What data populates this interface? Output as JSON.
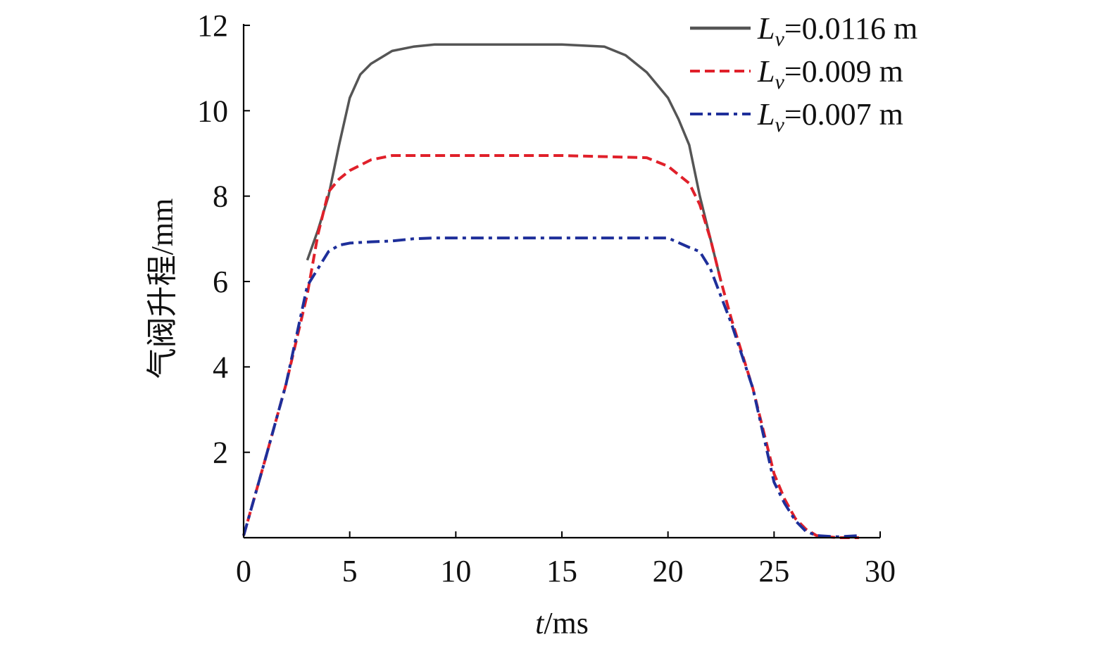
{
  "chart_data": {
    "type": "line",
    "xlabel": {
      "italic": "t",
      "rest": "/ms"
    },
    "ylabel": "气阀升程/mm",
    "xlim": [
      0,
      30
    ],
    "ylim": [
      0,
      12
    ],
    "xticks": [
      0,
      5,
      10,
      15,
      20,
      25,
      30
    ],
    "yticks": [
      2,
      4,
      6,
      8,
      10,
      12
    ],
    "grid": false,
    "legend": {
      "placement": "top-right"
    },
    "series": [
      {
        "name": "L_v=0.0116 m",
        "label_italic": "L",
        "label_sub": "v",
        "label_rest": "=0.0116 m",
        "color": "#555555",
        "style": "solid",
        "points": [
          [
            3.0,
            6.5
          ],
          [
            3.5,
            7.2
          ],
          [
            4.0,
            8.0
          ],
          [
            4.5,
            9.2
          ],
          [
            5.0,
            10.3
          ],
          [
            5.5,
            10.85
          ],
          [
            6.0,
            11.1
          ],
          [
            7.0,
            11.4
          ],
          [
            8.0,
            11.5
          ],
          [
            9.0,
            11.55
          ],
          [
            10.0,
            11.55
          ],
          [
            15.0,
            11.55
          ],
          [
            17.0,
            11.5
          ],
          [
            18.0,
            11.3
          ],
          [
            19.0,
            10.9
          ],
          [
            20.0,
            10.3
          ],
          [
            20.5,
            9.8
          ],
          [
            21.0,
            9.2
          ],
          [
            21.5,
            8.0
          ],
          [
            22.0,
            7.0
          ],
          [
            22.5,
            6.0
          ]
        ]
      },
      {
        "name": "L_v=0.009 m",
        "label_italic": "L",
        "label_sub": "v",
        "label_rest": "=0.009 m",
        "color": "#e0202a",
        "style": "dashed",
        "points": [
          [
            0.0,
            0.05
          ],
          [
            1.0,
            1.8
          ],
          [
            2.0,
            3.6
          ],
          [
            3.0,
            5.7
          ],
          [
            3.5,
            7.1
          ],
          [
            4.0,
            8.1
          ],
          [
            4.5,
            8.4
          ],
          [
            5.0,
            8.6
          ],
          [
            6.0,
            8.85
          ],
          [
            7.0,
            8.95
          ],
          [
            10.0,
            8.95
          ],
          [
            15.0,
            8.95
          ],
          [
            19.0,
            8.9
          ],
          [
            20.0,
            8.7
          ],
          [
            21.0,
            8.3
          ],
          [
            21.5,
            7.8
          ],
          [
            22.0,
            7.0
          ],
          [
            22.5,
            6.0
          ],
          [
            23.0,
            5.1
          ],
          [
            24.0,
            3.5
          ],
          [
            25.0,
            1.5
          ],
          [
            25.5,
            0.9
          ],
          [
            26.0,
            0.45
          ],
          [
            26.5,
            0.2
          ],
          [
            27.0,
            0.05
          ],
          [
            28.0,
            0.0
          ],
          [
            29.0,
            0.0
          ]
        ]
      },
      {
        "name": "L_v=0.007 m",
        "label_italic": "L",
        "label_sub": "v",
        "label_rest": "=0.007 m",
        "color": "#1e2f9a",
        "style": "dashdot",
        "points": [
          [
            0.0,
            0.05
          ],
          [
            1.0,
            1.8
          ],
          [
            2.0,
            3.6
          ],
          [
            3.0,
            5.9
          ],
          [
            3.5,
            6.3
          ],
          [
            4.0,
            6.7
          ],
          [
            4.5,
            6.85
          ],
          [
            5.0,
            6.9
          ],
          [
            6.0,
            6.93
          ],
          [
            7.0,
            6.95
          ],
          [
            8.0,
            7.0
          ],
          [
            9.0,
            7.02
          ],
          [
            10.0,
            7.02
          ],
          [
            15.0,
            7.02
          ],
          [
            20.0,
            7.02
          ],
          [
            21.0,
            6.8
          ],
          [
            21.5,
            6.7
          ],
          [
            22.0,
            6.3
          ],
          [
            23.0,
            5.0
          ],
          [
            24.0,
            3.5
          ],
          [
            25.0,
            1.3
          ],
          [
            25.5,
            0.8
          ],
          [
            26.0,
            0.4
          ],
          [
            26.5,
            0.15
          ],
          [
            27.0,
            0.05
          ],
          [
            28.0,
            0.02
          ],
          [
            29.0,
            0.05
          ]
        ]
      }
    ]
  }
}
